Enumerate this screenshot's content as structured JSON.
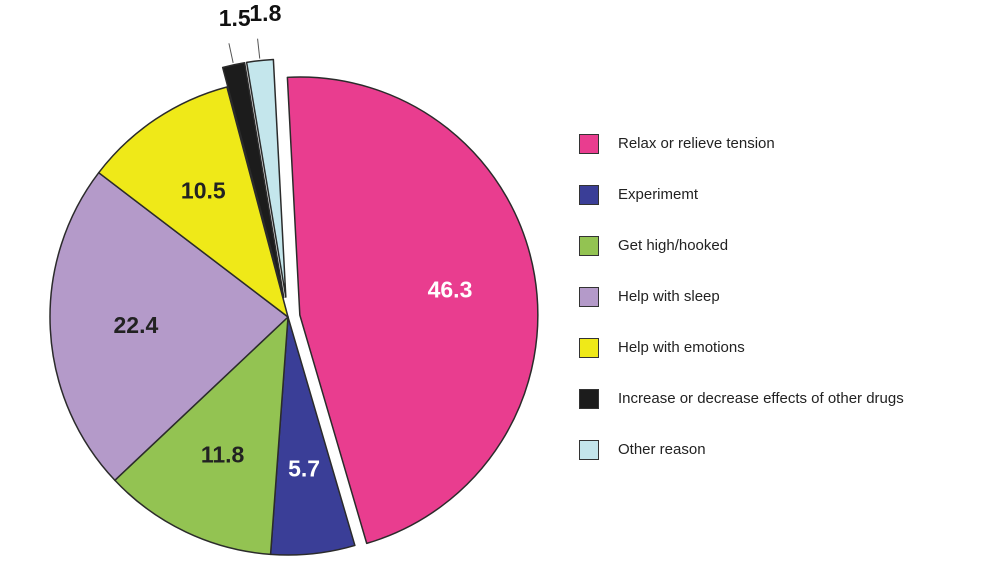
{
  "chart_data": {
    "type": "pie",
    "title": "",
    "unit": "%",
    "slices": [
      {
        "label": "Relax or relieve tension",
        "value": 46.3,
        "color": "#E93D8F",
        "label_color": "#FFFFFF",
        "exploded": true
      },
      {
        "label": "Experimemt",
        "value": 5.7,
        "color": "#3A3E97",
        "label_color": "#FFFFFF",
        "exploded": false
      },
      {
        "label": "Get high/hooked",
        "value": 11.8,
        "color": "#93C352",
        "label_color": "#222222",
        "exploded": false
      },
      {
        "label": "Help with sleep",
        "value": 22.4,
        "color": "#B49AC9",
        "label_color": "#222222",
        "exploded": false
      },
      {
        "label": "Help with emotions",
        "value": 10.5,
        "color": "#EFE918",
        "label_color": "#222222",
        "exploded": false
      },
      {
        "label": "Increase or decrease effects of other drugs",
        "value": 1.5,
        "color": "#1C1C1C",
        "label_color": "#111111",
        "exploded": true
      },
      {
        "label": "Other reason",
        "value": 1.8,
        "color": "#C4E6EC",
        "label_color": "#111111",
        "exploded": true
      }
    ],
    "legend_position": "right"
  }
}
